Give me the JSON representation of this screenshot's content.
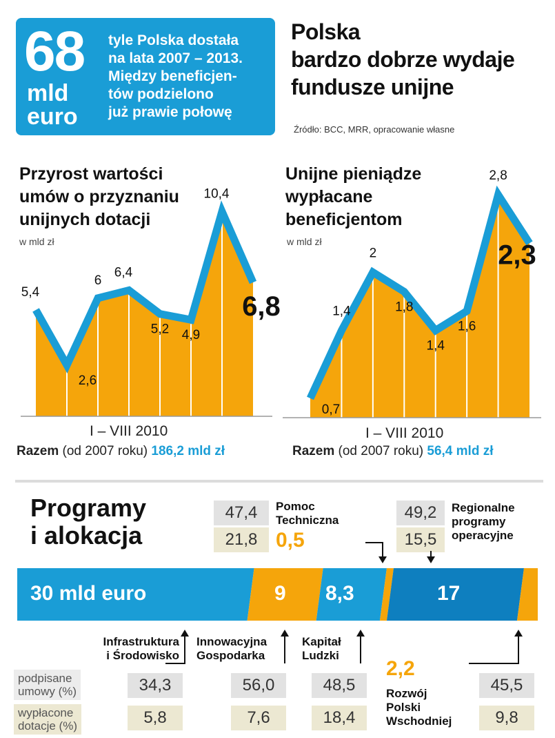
{
  "header": {
    "big_number": "68",
    "big_unit": "mld\neuro",
    "blue_text": "tyle Polska dostała\nna lata 2007 – 2013.\nMiędzy beneficjen-\ntów podzielono\njuż prawie połowę",
    "headline": "Polska\nbardzo dobrze wydaje\nfundusze unijne",
    "source": "Źródło: BCC, MRR, opracowanie własne"
  },
  "chart_data": [
    {
      "type": "area",
      "title": "Przyrost wartości\numów o przyznaniu\nunijnych dotacji",
      "unit": "w mld zł",
      "values": [
        5.4,
        2.6,
        6,
        6.4,
        5.2,
        4.9,
        10.4,
        6.8
      ],
      "value_labels": [
        "5,4",
        "2,6",
        "6",
        "6,4",
        "5,2",
        "4,9",
        "10,4",
        "6,8"
      ],
      "ylim": [
        0,
        11.5
      ],
      "xlabel": "I – VIII 2010",
      "total_label": "Razem",
      "total_note": "(od 2007 roku)",
      "total_value": "186,2 mld zł",
      "line_color": "#1a9dd6",
      "fill_color": "#f5a50b"
    },
    {
      "type": "area",
      "title": "Unijne pieniądze\nwypłacane\nbeneficjentom",
      "unit": "w mld zł",
      "values": [
        0.7,
        1.4,
        2,
        1.8,
        1.4,
        1.6,
        2.8,
        2.3
      ],
      "value_labels": [
        "0,7",
        "1,4",
        "2",
        "1,8",
        "1,4",
        "1,6",
        "2,8",
        "2,3"
      ],
      "ylim": [
        0.5,
        3.1
      ],
      "xlabel": "I – VIII 2010",
      "total_label": "Razem",
      "total_note": "(od 2007 roku)",
      "total_value": "56,4 mld zł",
      "line_color": "#1a9dd6",
      "fill_color": "#f5a50b"
    }
  ],
  "programs": {
    "title": "Programy\ni alokacja",
    "row_labels": {
      "signed": "podpisane\numowy (%)",
      "paid": "wypłacone\ndotacje (%)"
    },
    "colors": {
      "blue": "#1a9dd6",
      "dark_blue": "#0e7fbf",
      "orange": "#f5a50b"
    },
    "segments": [
      {
        "name": "Infrastruktura\ni Środowisko",
        "amount": "30 mld euro",
        "value": 30,
        "signed": "34,3",
        "paid": "5,8"
      },
      {
        "name": "Innowacyjna\nGospodarka",
        "amount": "9",
        "value": 9,
        "signed": "56,0",
        "paid": "7,6"
      },
      {
        "name": "Kapitał\nLudzki",
        "amount": "8,3",
        "value": 8.3,
        "signed": "48,5",
        "paid": "18,4"
      },
      {
        "name": "Pomoc\nTechniczna",
        "amount": "0,5",
        "value": 0.5,
        "signed": "47,4",
        "paid": "21,8"
      },
      {
        "name": "Regionalne\nprogramy\noperacyjne",
        "amount": "17",
        "value": 17,
        "signed": "49,2",
        "paid": "15,5"
      },
      {
        "name": "Rozwój\nPolski\nWschodniej",
        "amount": "2,2",
        "value": 2.2,
        "signed": "45,5",
        "paid": "9,8"
      }
    ]
  }
}
